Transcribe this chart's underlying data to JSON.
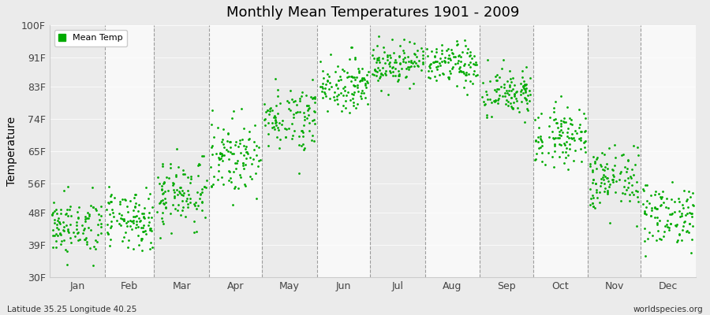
{
  "title": "Monthly Mean Temperatures 1901 - 2009",
  "ylabel": "Temperature",
  "ytick_labels": [
    "30F",
    "39F",
    "48F",
    "56F",
    "65F",
    "74F",
    "83F",
    "91F",
    "100F"
  ],
  "ytick_values": [
    30,
    39,
    48,
    56,
    65,
    74,
    83,
    91,
    100
  ],
  "ylim": [
    30,
    100
  ],
  "month_labels": [
    "Jan",
    "Feb",
    "Mar",
    "Apr",
    "May",
    "Jun",
    "Jul",
    "Aug",
    "Sep",
    "Oct",
    "Nov",
    "Dec"
  ],
  "dot_color": "#00aa00",
  "bg_color": "#ebebeb",
  "alt_band_color": "#f8f8f8",
  "footer_left": "Latitude 35.25 Longitude 40.25",
  "footer_right": "worldspecies.org",
  "legend_label": "Mean Temp",
  "monthly_means": [
    44.0,
    45.5,
    53.5,
    63.5,
    74.5,
    83.5,
    89.5,
    89.0,
    81.0,
    69.5,
    57.0,
    47.5
  ],
  "monthly_stds": [
    4.0,
    4.0,
    5.0,
    5.0,
    4.5,
    3.5,
    3.0,
    3.0,
    3.5,
    4.0,
    4.5,
    4.5
  ],
  "n_years": 109,
  "seed": 42,
  "days_in_month": [
    31,
    28,
    31,
    30,
    31,
    30,
    31,
    31,
    30,
    31,
    30,
    31
  ]
}
